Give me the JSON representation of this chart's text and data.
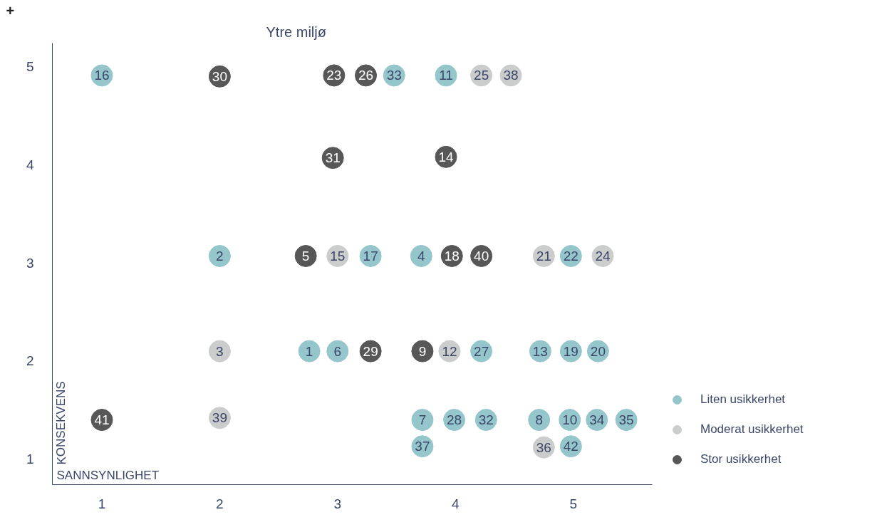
{
  "chart_data": {
    "type": "scatter",
    "title": "Ytre miljø",
    "xlabel": "SANNSYNLIGHET",
    "ylabel": "KONSEKVENS",
    "xlim": [
      0.58,
      5.67
    ],
    "ylim": [
      0.74,
      5.24
    ],
    "xticks": [
      1,
      2,
      3,
      4,
      5
    ],
    "yticks": [
      1,
      2,
      3,
      4,
      5
    ],
    "grid": false,
    "legend": "bottom right",
    "marker": "circle",
    "series": [
      {
        "name": "Liten usikkerhet",
        "color": "#94c6cb",
        "x": [
          1.0,
          2.0,
          3.48,
          3.92,
          3.28,
          3.71,
          4.98,
          2.76,
          3.0,
          4.22,
          4.72,
          4.98,
          5.21,
          3.72,
          3.99,
          4.26,
          4.71,
          4.97,
          5.2,
          5.45,
          3.72,
          4.98
        ],
        "values": [
          4.91,
          3.07,
          4.91,
          4.91,
          3.07,
          3.07,
          3.07,
          2.1,
          2.1,
          2.1,
          2.1,
          2.1,
          2.1,
          1.4,
          1.4,
          1.4,
          1.4,
          1.4,
          1.4,
          1.4,
          1.13,
          1.13
        ]
      },
      {
        "name": "Moderat usikkerhet",
        "color": "#cbcccc",
        "x": [
          4.22,
          4.47,
          3.0,
          4.75,
          5.25,
          2.0,
          3.95,
          2.0,
          4.75
        ],
        "values": [
          4.91,
          4.91,
          3.07,
          3.07,
          3.07,
          2.1,
          2.1,
          1.42,
          1.12
        ]
      },
      {
        "name": "Stor usikkerhet",
        "color": "#575757",
        "x": [
          2.0,
          2.97,
          3.24,
          2.96,
          3.92,
          2.73,
          3.97,
          4.22,
          3.28,
          3.72,
          1.0
        ],
        "values": [
          4.9,
          4.91,
          4.91,
          4.07,
          4.08,
          3.07,
          3.07,
          3.07,
          2.1,
          2.1,
          1.4
        ]
      }
    ],
    "annotations": [
      "+",
      {
        "text": "16",
        "x": 1.0,
        "y": 4.91
      },
      {
        "text": "2",
        "x": 2.0,
        "y": 3.07
      },
      {
        "text": "33",
        "x": 3.48,
        "y": 4.91
      },
      {
        "text": "11",
        "x": 3.92,
        "y": 4.91
      },
      {
        "text": "17",
        "x": 3.28,
        "y": 3.07
      },
      {
        "text": "4",
        "x": 3.71,
        "y": 3.07
      },
      {
        "text": "22",
        "x": 4.98,
        "y": 3.07
      },
      {
        "text": "1",
        "x": 2.76,
        "y": 2.1
      },
      {
        "text": "6",
        "x": 3.0,
        "y": 2.1
      },
      {
        "text": "27",
        "x": 4.22,
        "y": 2.1
      },
      {
        "text": "13",
        "x": 4.72,
        "y": 2.1
      },
      {
        "text": "19",
        "x": 4.98,
        "y": 2.1
      },
      {
        "text": "20",
        "x": 5.21,
        "y": 2.1
      },
      {
        "text": "7",
        "x": 3.72,
        "y": 1.4
      },
      {
        "text": "28",
        "x": 3.99,
        "y": 1.4
      },
      {
        "text": "32",
        "x": 4.26,
        "y": 1.4
      },
      {
        "text": "8",
        "x": 4.71,
        "y": 1.4
      },
      {
        "text": "10",
        "x": 4.97,
        "y": 1.4
      },
      {
        "text": "34",
        "x": 5.2,
        "y": 1.4
      },
      {
        "text": "35",
        "x": 5.45,
        "y": 1.4
      },
      {
        "text": "37",
        "x": 3.72,
        "y": 1.13
      },
      {
        "text": "42",
        "x": 4.98,
        "y": 1.13
      },
      {
        "text": "25",
        "x": 4.22,
        "y": 4.91
      },
      {
        "text": "38",
        "x": 4.47,
        "y": 4.91
      },
      {
        "text": "15",
        "x": 3.0,
        "y": 3.07
      },
      {
        "text": "21",
        "x": 4.75,
        "y": 3.07
      },
      {
        "text": "24",
        "x": 5.25,
        "y": 3.07
      },
      {
        "text": "3",
        "x": 2.0,
        "y": 2.1
      },
      {
        "text": "12",
        "x": 3.95,
        "y": 2.1
      },
      {
        "text": "39",
        "x": 2.0,
        "y": 1.42
      },
      {
        "text": "36",
        "x": 4.75,
        "y": 1.12
      },
      {
        "text": "30",
        "x": 2.0,
        "y": 4.9
      },
      {
        "text": "23",
        "x": 2.97,
        "y": 4.91
      },
      {
        "text": "26",
        "x": 3.24,
        "y": 4.91
      },
      {
        "text": "31",
        "x": 2.96,
        "y": 4.07
      },
      {
        "text": "14",
        "x": 3.92,
        "y": 4.08
      },
      {
        "text": "5",
        "x": 2.73,
        "y": 3.07
      },
      {
        "text": "18",
        "x": 3.97,
        "y": 3.07
      },
      {
        "text": "40",
        "x": 4.22,
        "y": 3.07
      },
      {
        "text": "29",
        "x": 3.28,
        "y": 2.1
      },
      {
        "text": "9",
        "x": 3.72,
        "y": 2.1
      },
      {
        "text": "41",
        "x": 1.0,
        "y": 1.4
      }
    ]
  }
}
